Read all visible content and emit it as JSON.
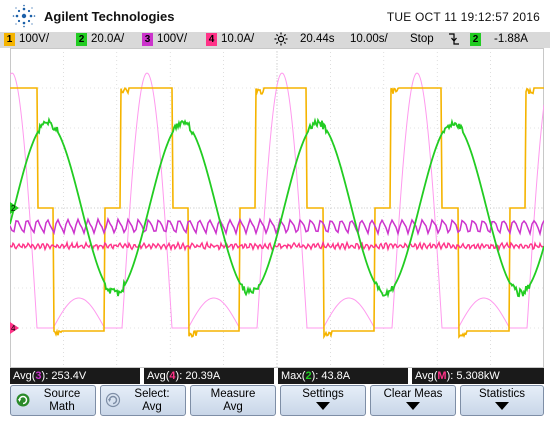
{
  "header": {
    "brand": "Agilent Technologies",
    "datetime": "TUE OCT 11 19:12:57 2016"
  },
  "status": {
    "ch1": {
      "num": "1",
      "scale": "100V/",
      "color": "#f5b400"
    },
    "ch2": {
      "num": "2",
      "scale": "20.0A/",
      "color": "#22cc22"
    },
    "ch3": {
      "num": "3",
      "scale": "100V/",
      "color": "#cc33cc"
    },
    "ch4": {
      "num": "4",
      "scale": "10.0A/",
      "color": "#ff3388"
    },
    "trigger_icon": "trigger-sun-icon",
    "time_offset": "20.44s",
    "time_scale": "10.00s/",
    "run_state": "Stop",
    "slope_icon": "falling-edge-icon",
    "trig_ch": "2",
    "trig_level": "-1.88A"
  },
  "markers": {
    "ch2_marker": "2",
    "ch4_marker": "4"
  },
  "measurements": {
    "m1": {
      "label": "Avg(",
      "ch": "3",
      "close": "):",
      "value": " 253.4V",
      "color": "#cc33cc"
    },
    "m2": {
      "label": "Avg(",
      "ch": "4",
      "close": "):",
      "value": " 20.39A",
      "color": "#ff3388"
    },
    "m3": {
      "label": "Max(",
      "ch": "2",
      "close": "):",
      "value": " 43.8A",
      "color": "#22cc22"
    },
    "m4": {
      "label": "Avg(",
      "ch": "M",
      "close": "):",
      "value": " 5.308kW",
      "color": "#ff3388"
    }
  },
  "softkeys": {
    "source": {
      "line1": "Source",
      "line2": "Math"
    },
    "select": {
      "line1": "Select:",
      "line2": "Avg"
    },
    "measure": {
      "line1": "Measure",
      "line2": "Avg"
    },
    "settings": {
      "line1": "Settings"
    },
    "clear": {
      "line1": "Clear Meas"
    },
    "statistics": {
      "line1": "Statistics"
    }
  },
  "colors": {
    "ch1": "#f5b400",
    "ch2": "#22cc22",
    "ch3": "#cc33cc",
    "ch4": "#ff3388",
    "math": "#ff99ee",
    "grid": "#c8c8c8",
    "softkey_bg": "#d6e0ee"
  }
}
